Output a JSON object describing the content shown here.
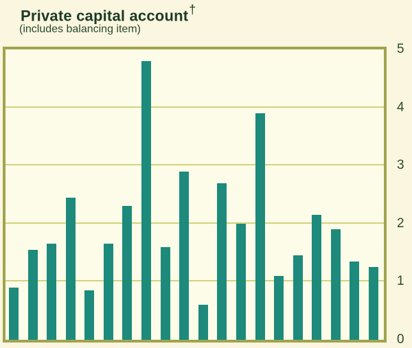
{
  "title": {
    "text": "Private capital account",
    "dagger": "†"
  },
  "subtitle": "(includes balancing item)",
  "colors": {
    "page_bg": "#faf6df",
    "plot_bg": "#fdfce9",
    "frame": "#a0a44f",
    "gridline": "#d2d37c",
    "bar": "#1d8a7c",
    "title_text": "#1c3a26",
    "subtitle_text": "#2a4a2e",
    "axis_text": "#2a4a2e"
  },
  "chart_data": {
    "type": "bar",
    "title": "Private capital account (includes balancing item)",
    "values": [
      0.9,
      1.55,
      1.65,
      2.45,
      0.85,
      1.65,
      2.3,
      4.8,
      1.6,
      2.9,
      0.6,
      2.7,
      2.0,
      3.9,
      1.1,
      1.45,
      2.15,
      1.9,
      1.35,
      1.25
    ],
    "xlabel": "",
    "ylabel": "",
    "ylim": [
      0,
      5
    ],
    "yticks": [
      5,
      4,
      3,
      2,
      1,
      0
    ],
    "gridlines_at": [
      1,
      2,
      3,
      4
    ],
    "grid": "horizontal",
    "tick_side": "right",
    "legend": "none"
  }
}
